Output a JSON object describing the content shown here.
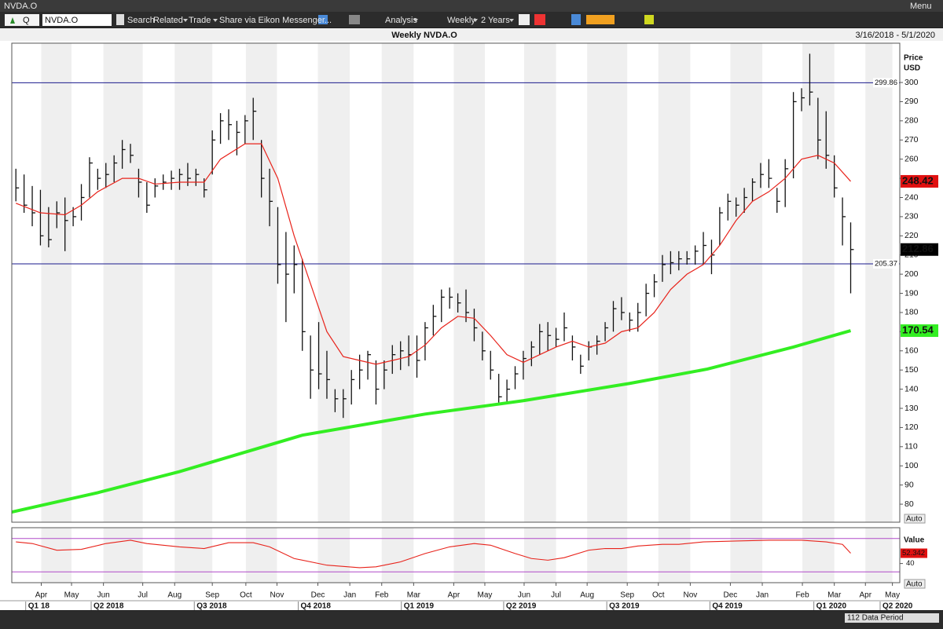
{
  "window": {
    "title": "NVDA.O",
    "menu": "Menu"
  },
  "toolbar": {
    "search_mode": "Q",
    "symbol": "NVDA.O",
    "items": [
      "Search",
      "Related",
      "Trade",
      "Share via Eikon Messenger...",
      "Analysis",
      "Weekly",
      "2 Years"
    ]
  },
  "chart_data": [
    {
      "type": "ohlc",
      "title": "Weekly NVDA.O",
      "subtitle": "3/16/2018 - 5/1/2020",
      "ylabel": "Price",
      "yunit": "USD",
      "scale_mode": "Auto",
      "bar_color": "#111111",
      "high": [
        255,
        252,
        246,
        244,
        235,
        238,
        240,
        235,
        247,
        261,
        255,
        258,
        262,
        270,
        268,
        255,
        248,
        250,
        252,
        254,
        255,
        258,
        255,
        250,
        275,
        284,
        286,
        280,
        283,
        292,
        270,
        255,
        235,
        222,
        215,
        208,
        168,
        175,
        160,
        140,
        140,
        150,
        158,
        160,
        155,
        155,
        163,
        165,
        168,
        168,
        175,
        184,
        192,
        193,
        190,
        192,
        182,
        170,
        160,
        148,
        145,
        152,
        160,
        165,
        174,
        175,
        172,
        180,
        168,
        158,
        165,
        168,
        175,
        186,
        188,
        180,
        185,
        195,
        200,
        210,
        212,
        212,
        212,
        215,
        222,
        218,
        235,
        242,
        240,
        245,
        250,
        258,
        260,
        245,
        260,
        295,
        297,
        315,
        292,
        285,
        262,
        240,
        227
      ],
      "low": [
        238,
        232,
        225,
        215,
        214,
        224,
        212,
        225,
        228,
        240,
        244,
        245,
        248,
        255,
        258,
        240,
        232,
        240,
        244,
        244,
        244,
        246,
        246,
        240,
        252,
        268,
        270,
        262,
        268,
        270,
        240,
        225,
        195,
        175,
        190,
        160,
        135,
        140,
        135,
        128,
        125,
        132,
        140,
        145,
        132,
        140,
        148,
        150,
        152,
        146,
        155,
        168,
        175,
        182,
        180,
        175,
        165,
        155,
        145,
        133,
        133,
        140,
        145,
        152,
        158,
        160,
        162,
        165,
        155,
        148,
        155,
        158,
        165,
        170,
        176,
        170,
        170,
        178,
        188,
        196,
        200,
        202,
        205,
        205,
        205,
        200,
        215,
        228,
        230,
        232,
        238,
        245,
        245,
        232,
        235,
        250,
        285,
        288,
        260,
        255,
        240,
        215,
        190
      ],
      "close": [
        245,
        236,
        232,
        220,
        218,
        232,
        228,
        230,
        240,
        258,
        250,
        252,
        258,
        265,
        262,
        248,
        236,
        246,
        248,
        250,
        252,
        250,
        252,
        244,
        270,
        280,
        278,
        274,
        280,
        285,
        250,
        238,
        205,
        200,
        205,
        170,
        150,
        148,
        145,
        135,
        135,
        145,
        150,
        158,
        140,
        150,
        158,
        160,
        158,
        155,
        172,
        178,
        188,
        188,
        185,
        180,
        172,
        160,
        150,
        136,
        140,
        148,
        156,
        162,
        170,
        168,
        166,
        172,
        162,
        152,
        162,
        165,
        172,
        182,
        180,
        176,
        180,
        190,
        196,
        205,
        206,
        208,
        208,
        212,
        215,
        210,
        232,
        238,
        236,
        240,
        248,
        252,
        250,
        238,
        255,
        290,
        292,
        295,
        270,
        262,
        245,
        230,
        212.86
      ],
      "series": [
        {
          "color": "#e8231b",
          "x": [
            0,
            3,
            6,
            8,
            10,
            13,
            15,
            17,
            20,
            23,
            25,
            28,
            30,
            32,
            34,
            36,
            38,
            40,
            42,
            44,
            46,
            48,
            50,
            52,
            54,
            56,
            58,
            60,
            62,
            64,
            66,
            68,
            70,
            72,
            74,
            76,
            78,
            80,
            82,
            84,
            86,
            88,
            90,
            92,
            94,
            96,
            98,
            100,
            102
          ],
          "values": [
            237,
            232,
            231,
            236,
            243,
            250,
            250,
            247,
            248,
            248,
            260,
            268,
            268,
            250,
            220,
            195,
            170,
            157,
            155,
            153,
            155,
            157,
            163,
            172,
            178,
            177,
            168,
            158,
            154,
            158,
            162,
            165,
            162,
            164,
            170,
            172,
            180,
            192,
            200,
            205,
            215,
            228,
            238,
            243,
            250,
            260,
            262,
            258,
            248.42
          ]
        },
        {
          "color": "#33ee22",
          "x": [
            -0.5,
            10,
            20,
            35,
            50,
            62,
            75,
            84.5,
            95,
            102
          ],
          "values": [
            75.9,
            86,
            97,
            116,
            127,
            134,
            143,
            150.5,
            162,
            170.54
          ]
        }
      ],
      "hlines": [
        299.86,
        205.37
      ],
      "hline_color": "#1a1a8c",
      "xlim": [
        -0.5,
        108.0
      ],
      "ylim": [
        70.6,
        320.5
      ],
      "yticks": [
        80,
        90,
        100,
        110,
        120,
        130,
        140,
        150,
        160,
        170,
        180,
        190,
        200,
        210,
        220,
        230,
        240,
        250,
        260,
        270,
        280,
        290,
        300
      ],
      "xticks": [
        {
          "value": 3.1,
          "label": "Apr"
        },
        {
          "value": 6.8,
          "label": "May"
        },
        {
          "value": 10.7,
          "label": "Jun"
        },
        {
          "value": 15.5,
          "label": "Jul"
        },
        {
          "value": 19.4,
          "label": "Aug"
        },
        {
          "value": 24.0,
          "label": "Sep"
        },
        {
          "value": 28.1,
          "label": "Oct"
        },
        {
          "value": 31.9,
          "label": "Nov"
        },
        {
          "value": 36.9,
          "label": "Dec"
        },
        {
          "value": 40.8,
          "label": "Jan"
        },
        {
          "value": 44.7,
          "label": "Feb"
        },
        {
          "value": 48.6,
          "label": "Mar"
        },
        {
          "value": 53.5,
          "label": "Apr"
        },
        {
          "value": 57.3,
          "label": "May"
        },
        {
          "value": 62.1,
          "label": "Jun"
        },
        {
          "value": 66.0,
          "label": "Jul"
        },
        {
          "value": 69.8,
          "label": "Aug"
        },
        {
          "value": 74.7,
          "label": "Sep"
        },
        {
          "value": 78.5,
          "label": "Oct"
        },
        {
          "value": 82.4,
          "label": "Nov"
        },
        {
          "value": 87.3,
          "label": "Dec"
        },
        {
          "value": 91.2,
          "label": "Jan"
        },
        {
          "value": 96.1,
          "label": "Feb"
        },
        {
          "value": 100.0,
          "label": "Mar"
        },
        {
          "value": 103.8,
          "label": "Apr"
        },
        {
          "value": 107.1,
          "label": "May"
        }
      ],
      "quarter_ticks": [
        {
          "value": 1.2,
          "label": "Q1 18"
        },
        {
          "value": 9.2,
          "label": "Q2 2018"
        },
        {
          "value": 21.8,
          "label": "Q3 2018"
        },
        {
          "value": 34.5,
          "label": "Q4 2018"
        },
        {
          "value": 47.1,
          "label": "Q1 2019"
        },
        {
          "value": 59.6,
          "label": "Q2 2019"
        },
        {
          "value": 72.2,
          "label": "Q3 2019"
        },
        {
          "value": 84.8,
          "label": "Q4 2019"
        },
        {
          "value": 97.5,
          "label": "Q1 2020"
        },
        {
          "value": 105.6,
          "label": "Q2 2020"
        }
      ]
    },
    {
      "type": "line",
      "ylabel": "Value",
      "scale_mode": "Auto",
      "series": [
        {
          "color": "#e8231b",
          "x": [
            0,
            2,
            5,
            8,
            11,
            14,
            16,
            20,
            23,
            26,
            29,
            31,
            34,
            38,
            42,
            44,
            47,
            50,
            53,
            56,
            58,
            61,
            63,
            65,
            67,
            70,
            72,
            74,
            76,
            79,
            81,
            84,
            88,
            92,
            96,
            99,
            101,
            102
          ],
          "values": [
            66,
            64,
            56,
            57,
            64,
            68,
            64,
            60,
            58,
            65,
            65,
            60,
            46,
            38,
            35,
            36,
            42,
            52,
            60,
            64,
            62,
            52,
            46,
            44,
            47,
            56,
            58,
            58,
            61,
            63,
            63,
            66,
            67,
            68,
            68,
            66,
            63,
            52.342
          ]
        }
      ],
      "levels": [
        30,
        70
      ],
      "level_color": "#b04ac8",
      "xlim": [
        -0.5,
        108.0
      ],
      "ylim": [
        17,
        83
      ],
      "yticks": [
        40
      ]
    }
  ],
  "footer": {
    "data_period": "112 Data Period"
  }
}
